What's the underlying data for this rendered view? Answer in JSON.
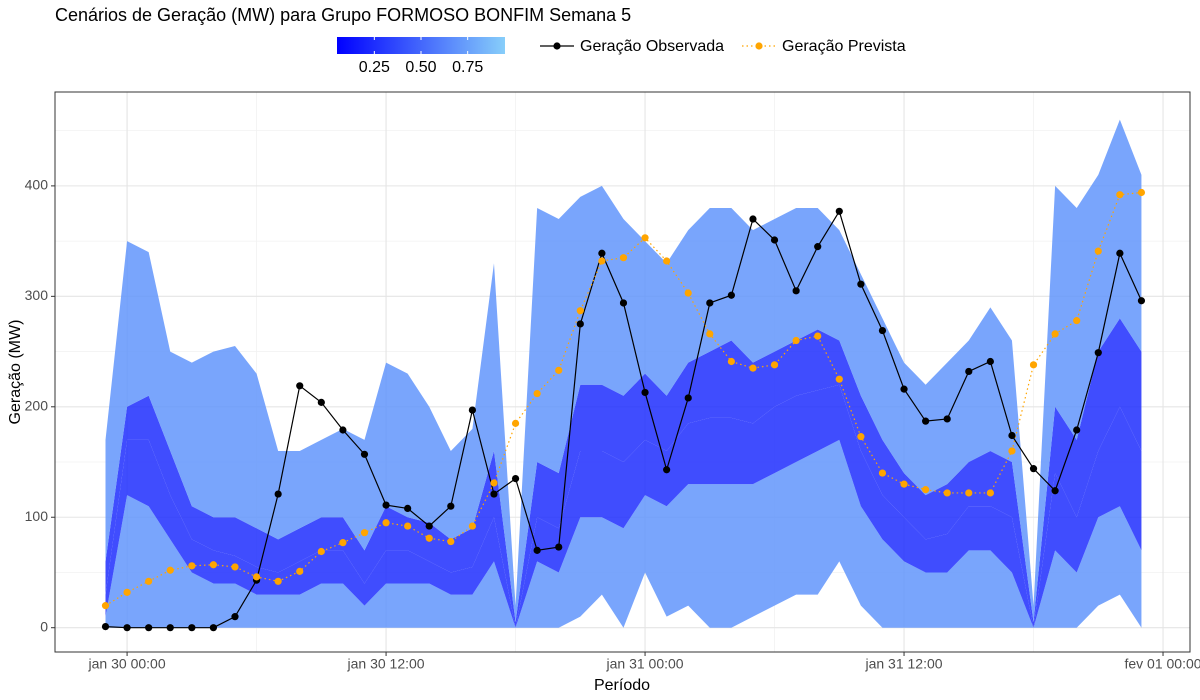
{
  "chart_data": {
    "type": "fan-line",
    "title": "Cenários de Geração (MW) para Grupo FORMOSO BONFIM Semana 5",
    "xlabel": "Período",
    "ylabel": "Geração (MW)",
    "xlim": [
      20.66,
      73.25
    ],
    "xticks": [
      {
        "value": 24,
        "label": "jan 30 00:00"
      },
      {
        "value": 36,
        "label": "jan 30 12:00"
      },
      {
        "value": 48,
        "label": "jan 31 00:00"
      },
      {
        "value": 60,
        "label": "jan 31 12:00"
      },
      {
        "value": 72,
        "label": "fev 01 00:00"
      }
    ],
    "xminor": [
      30,
      42,
      54,
      66
    ],
    "ylim": [
      -22,
      485
    ],
    "yticks": [
      0,
      100,
      200,
      300,
      400
    ],
    "yminor": [
      50,
      150,
      250,
      350,
      450
    ],
    "grid": true,
    "x": [
      23,
      24,
      25,
      26,
      27,
      28,
      29,
      30,
      31,
      32,
      33,
      34,
      35,
      36,
      37,
      38,
      39,
      40,
      41,
      42,
      43,
      44,
      45,
      46,
      47,
      48,
      49,
      50,
      51,
      52,
      53,
      54,
      55,
      56,
      57,
      58,
      59,
      60,
      61,
      62,
      63,
      64,
      65,
      66,
      67,
      68,
      69,
      70,
      71
    ],
    "fan": {
      "colors": [
        "#0000ff",
        "#87cefa"
      ],
      "lim": [
        0.05,
        0.95
      ],
      "ticks": [
        0.25,
        {
          "value": 0.5,
          "label": "0.50"
        },
        0.75
      ],
      "quantiles": [
        {
          "level": 0.05,
          "values": [
            0,
            0,
            0,
            0,
            0,
            0,
            0,
            0,
            0,
            0,
            0,
            0,
            0,
            0,
            0,
            0,
            0,
            0,
            0,
            0,
            0,
            0,
            10,
            30,
            0,
            50,
            10,
            20,
            0,
            0,
            10,
            20,
            30,
            30,
            60,
            20,
            0,
            0,
            0,
            0,
            0,
            0,
            0,
            0,
            0,
            0,
            20,
            30,
            0
          ]
        },
        {
          "level": 0.25,
          "values": [
            10,
            120,
            110,
            80,
            50,
            40,
            40,
            30,
            30,
            30,
            40,
            40,
            20,
            40,
            40,
            40,
            30,
            30,
            60,
            0,
            60,
            50,
            100,
            100,
            90,
            120,
            110,
            130,
            130,
            130,
            130,
            140,
            150,
            160,
            170,
            110,
            80,
            60,
            50,
            50,
            70,
            70,
            50,
            0,
            70,
            50,
            100,
            110,
            70
          ]
        },
        {
          "level": 0.5,
          "values": [
            30,
            170,
            170,
            120,
            80,
            70,
            65,
            55,
            50,
            60,
            70,
            70,
            40,
            70,
            70,
            60,
            50,
            55,
            100,
            0,
            100,
            90,
            160,
            160,
            150,
            170,
            160,
            185,
            190,
            190,
            185,
            200,
            210,
            215,
            220,
            160,
            120,
            100,
            80,
            85,
            110,
            110,
            100,
            0,
            140,
            100,
            160,
            200,
            160
          ]
        },
        {
          "level": 0.75,
          "values": [
            60,
            200,
            210,
            160,
            110,
            100,
            100,
            90,
            80,
            90,
            100,
            100,
            70,
            110,
            100,
            95,
            80,
            90,
            160,
            5,
            150,
            140,
            220,
            220,
            210,
            230,
            210,
            240,
            250,
            260,
            240,
            250,
            260,
            270,
            260,
            210,
            170,
            140,
            120,
            130,
            150,
            160,
            150,
            5,
            200,
            170,
            250,
            280,
            250
          ]
        },
        {
          "level": 0.95,
          "values": [
            170,
            350,
            340,
            250,
            240,
            250,
            255,
            230,
            160,
            160,
            170,
            180,
            170,
            240,
            230,
            200,
            160,
            180,
            330,
            20,
            380,
            370,
            390,
            400,
            370,
            350,
            330,
            360,
            380,
            380,
            360,
            370,
            380,
            380,
            360,
            320,
            280,
            240,
            220,
            240,
            260,
            290,
            260,
            20,
            400,
            380,
            410,
            460,
            410
          ]
        }
      ]
    },
    "series": [
      {
        "name": "Geração Observada",
        "color": "#000000",
        "style": "solid",
        "values": [
          1,
          0,
          0,
          0,
          0,
          0,
          10,
          43,
          121,
          219,
          204,
          179,
          157,
          111,
          108,
          92,
          110,
          197,
          121,
          135,
          70,
          73,
          275,
          339,
          294,
          213,
          143,
          208,
          294,
          301,
          370,
          351,
          305,
          345,
          377,
          311,
          269,
          216,
          187,
          189,
          232,
          241,
          174,
          144,
          124,
          179,
          249,
          339,
          296
        ]
      },
      {
        "name": "Geração Prevista",
        "color": "#ffa500",
        "style": "dotted",
        "values": [
          20,
          32,
          42,
          52,
          56,
          57,
          55,
          46,
          42,
          51,
          69,
          77,
          86,
          95,
          92,
          81,
          78,
          92,
          131,
          185,
          212,
          233,
          287,
          332,
          335,
          353,
          332,
          303,
          266,
          241,
          235,
          238,
          260,
          264,
          225,
          173,
          140,
          130,
          125,
          122,
          122,
          122,
          160,
          238,
          266,
          278,
          341,
          392,
          394
        ]
      }
    ]
  }
}
